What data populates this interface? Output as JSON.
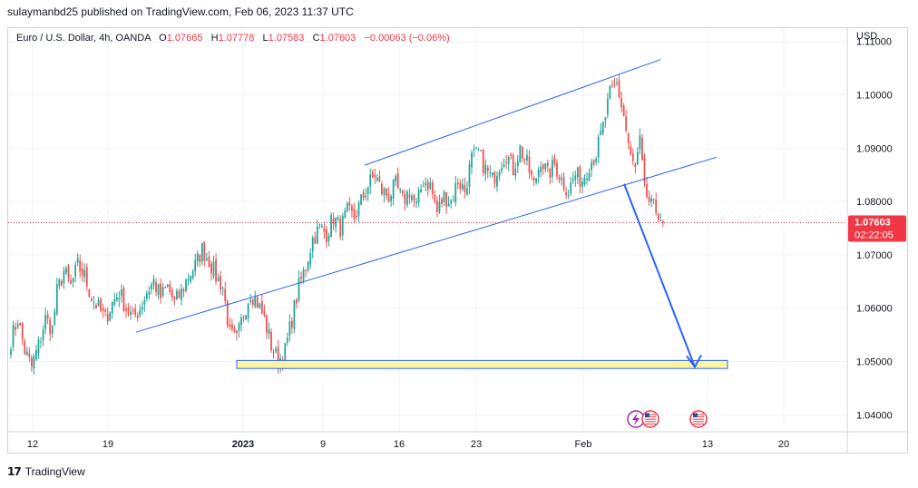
{
  "header": {
    "published": "sulaymanbd25 published on TradingView.com, Feb 06, 2023 11:37 UTC"
  },
  "symbol": {
    "name": "Euro / U.S. Dollar, 4h, OANDA",
    "open_label": "O",
    "open": "1.07665",
    "high_label": "H",
    "high": "1.07778",
    "low_label": "L",
    "low": "1.07583",
    "close_label": "C",
    "close": "1.07603",
    "change": "−0.00063 (−0.06%)"
  },
  "price_axis": {
    "currency": "USD",
    "ticks": [
      "1.11000",
      "1.10000",
      "1.09000",
      "1.08000",
      "1.07000",
      "1.06000",
      "1.05000",
      "1.04000"
    ],
    "last_price": "1.07603",
    "countdown": "02:22:05"
  },
  "time_axis": {
    "ticks": [
      "12",
      "19",
      "2023",
      "9",
      "16",
      "23",
      "Feb",
      "13",
      "20"
    ]
  },
  "footer": {
    "brand": "TradingView",
    "logo": "17"
  },
  "colors": {
    "up": "#26a69a",
    "down": "#ef5350",
    "trendline": "#2962ff",
    "zone_fill": "#fff59d",
    "zone_stroke": "#2962ff",
    "last_price": "#f23645"
  },
  "chart_data": {
    "type": "candlestick",
    "timeframe": "4h",
    "y_ticks": [
      1.04,
      1.05,
      1.06,
      1.07,
      1.08,
      1.09,
      1.1,
      1.11
    ],
    "ylim": [
      1.037,
      1.1125
    ],
    "current_price": 1.07603,
    "x_labels": [
      "12",
      "19",
      "2023",
      "9",
      "16",
      "23",
      "Feb",
      "13",
      "20"
    ],
    "price_path": [
      [
        0,
        1.054
      ],
      [
        3,
        1.058
      ],
      [
        6,
        1.052
      ],
      [
        9,
        1.049
      ],
      [
        12,
        1.053
      ],
      [
        15,
        1.058
      ],
      [
        18,
        1.056
      ],
      [
        20,
        1.063
      ],
      [
        23,
        1.067
      ],
      [
        26,
        1.064
      ],
      [
        29,
        1.068
      ],
      [
        32,
        1.066
      ],
      [
        35,
        1.062
      ],
      [
        38,
        1.06
      ],
      [
        41,
        1.058
      ],
      [
        44,
        1.061
      ],
      [
        47,
        1.063
      ],
      [
        50,
        1.06
      ],
      [
        53,
        1.058
      ],
      [
        56,
        1.06
      ],
      [
        59,
        1.063
      ],
      [
        62,
        1.065
      ],
      [
        65,
        1.062
      ],
      [
        68,
        1.064
      ],
      [
        71,
        1.061
      ],
      [
        74,
        1.063
      ],
      [
        77,
        1.066
      ],
      [
        80,
        1.068
      ],
      [
        83,
        1.071
      ],
      [
        86,
        1.069
      ],
      [
        89,
        1.066
      ],
      [
        92,
        1.064
      ],
      [
        95,
        1.055
      ],
      [
        98,
        1.054
      ],
      [
        101,
        1.059
      ],
      [
        104,
        1.063
      ],
      [
        107,
        1.061
      ],
      [
        110,
        1.058
      ],
      [
        113,
        1.053
      ],
      [
        116,
        1.05
      ],
      [
        119,
        1.052
      ],
      [
        122,
        1.058
      ],
      [
        125,
        1.064
      ],
      [
        128,
        1.068
      ],
      [
        131,
        1.073
      ],
      [
        134,
        1.075
      ],
      [
        137,
        1.074
      ],
      [
        140,
        1.077
      ],
      [
        143,
        1.075
      ],
      [
        146,
        1.078
      ],
      [
        149,
        1.077
      ],
      [
        152,
        1.08
      ],
      [
        155,
        1.083
      ],
      [
        158,
        1.085
      ],
      [
        161,
        1.082
      ],
      [
        164,
        1.081
      ],
      [
        167,
        1.083
      ],
      [
        170,
        1.08
      ],
      [
        173,
        1.082
      ],
      [
        176,
        1.079
      ],
      [
        179,
        1.084
      ],
      [
        182,
        1.083
      ],
      [
        185,
        1.078
      ],
      [
        188,
        1.081
      ],
      [
        191,
        1.08
      ],
      [
        194,
        1.084
      ],
      [
        197,
        1.082
      ],
      [
        200,
        1.088
      ],
      [
        203,
        1.089
      ],
      [
        206,
        1.086
      ],
      [
        209,
        1.084
      ],
      [
        212,
        1.087
      ],
      [
        215,
        1.089
      ],
      [
        218,
        1.086
      ],
      [
        221,
        1.09
      ],
      [
        224,
        1.087
      ],
      [
        227,
        1.083
      ],
      [
        230,
        1.088
      ],
      [
        233,
        1.085
      ],
      [
        236,
        1.087
      ],
      [
        239,
        1.084
      ],
      [
        242,
        1.082
      ],
      [
        245,
        1.085
      ],
      [
        248,
        1.084
      ],
      [
        251,
        1.087
      ],
      [
        254,
        1.089
      ],
      [
        257,
        1.094
      ],
      [
        260,
        1.1
      ],
      [
        263,
        1.102
      ],
      [
        266,
        1.096
      ],
      [
        269,
        1.088
      ],
      [
        271,
        1.086
      ],
      [
        273,
        1.091
      ],
      [
        275,
        1.082
      ],
      [
        278,
        1.079
      ],
      [
        281,
        1.078
      ],
      [
        283,
        1.076
      ]
    ],
    "annotations": {
      "upper_channel": [
        [
          1.0868,
          1.1066
        ]
      ],
      "lower_channel": [
        [
          1.0555,
          1.0883
        ]
      ],
      "support_zone": [
        1.0487,
        1.0502
      ],
      "projection_to": 1.049
    }
  }
}
